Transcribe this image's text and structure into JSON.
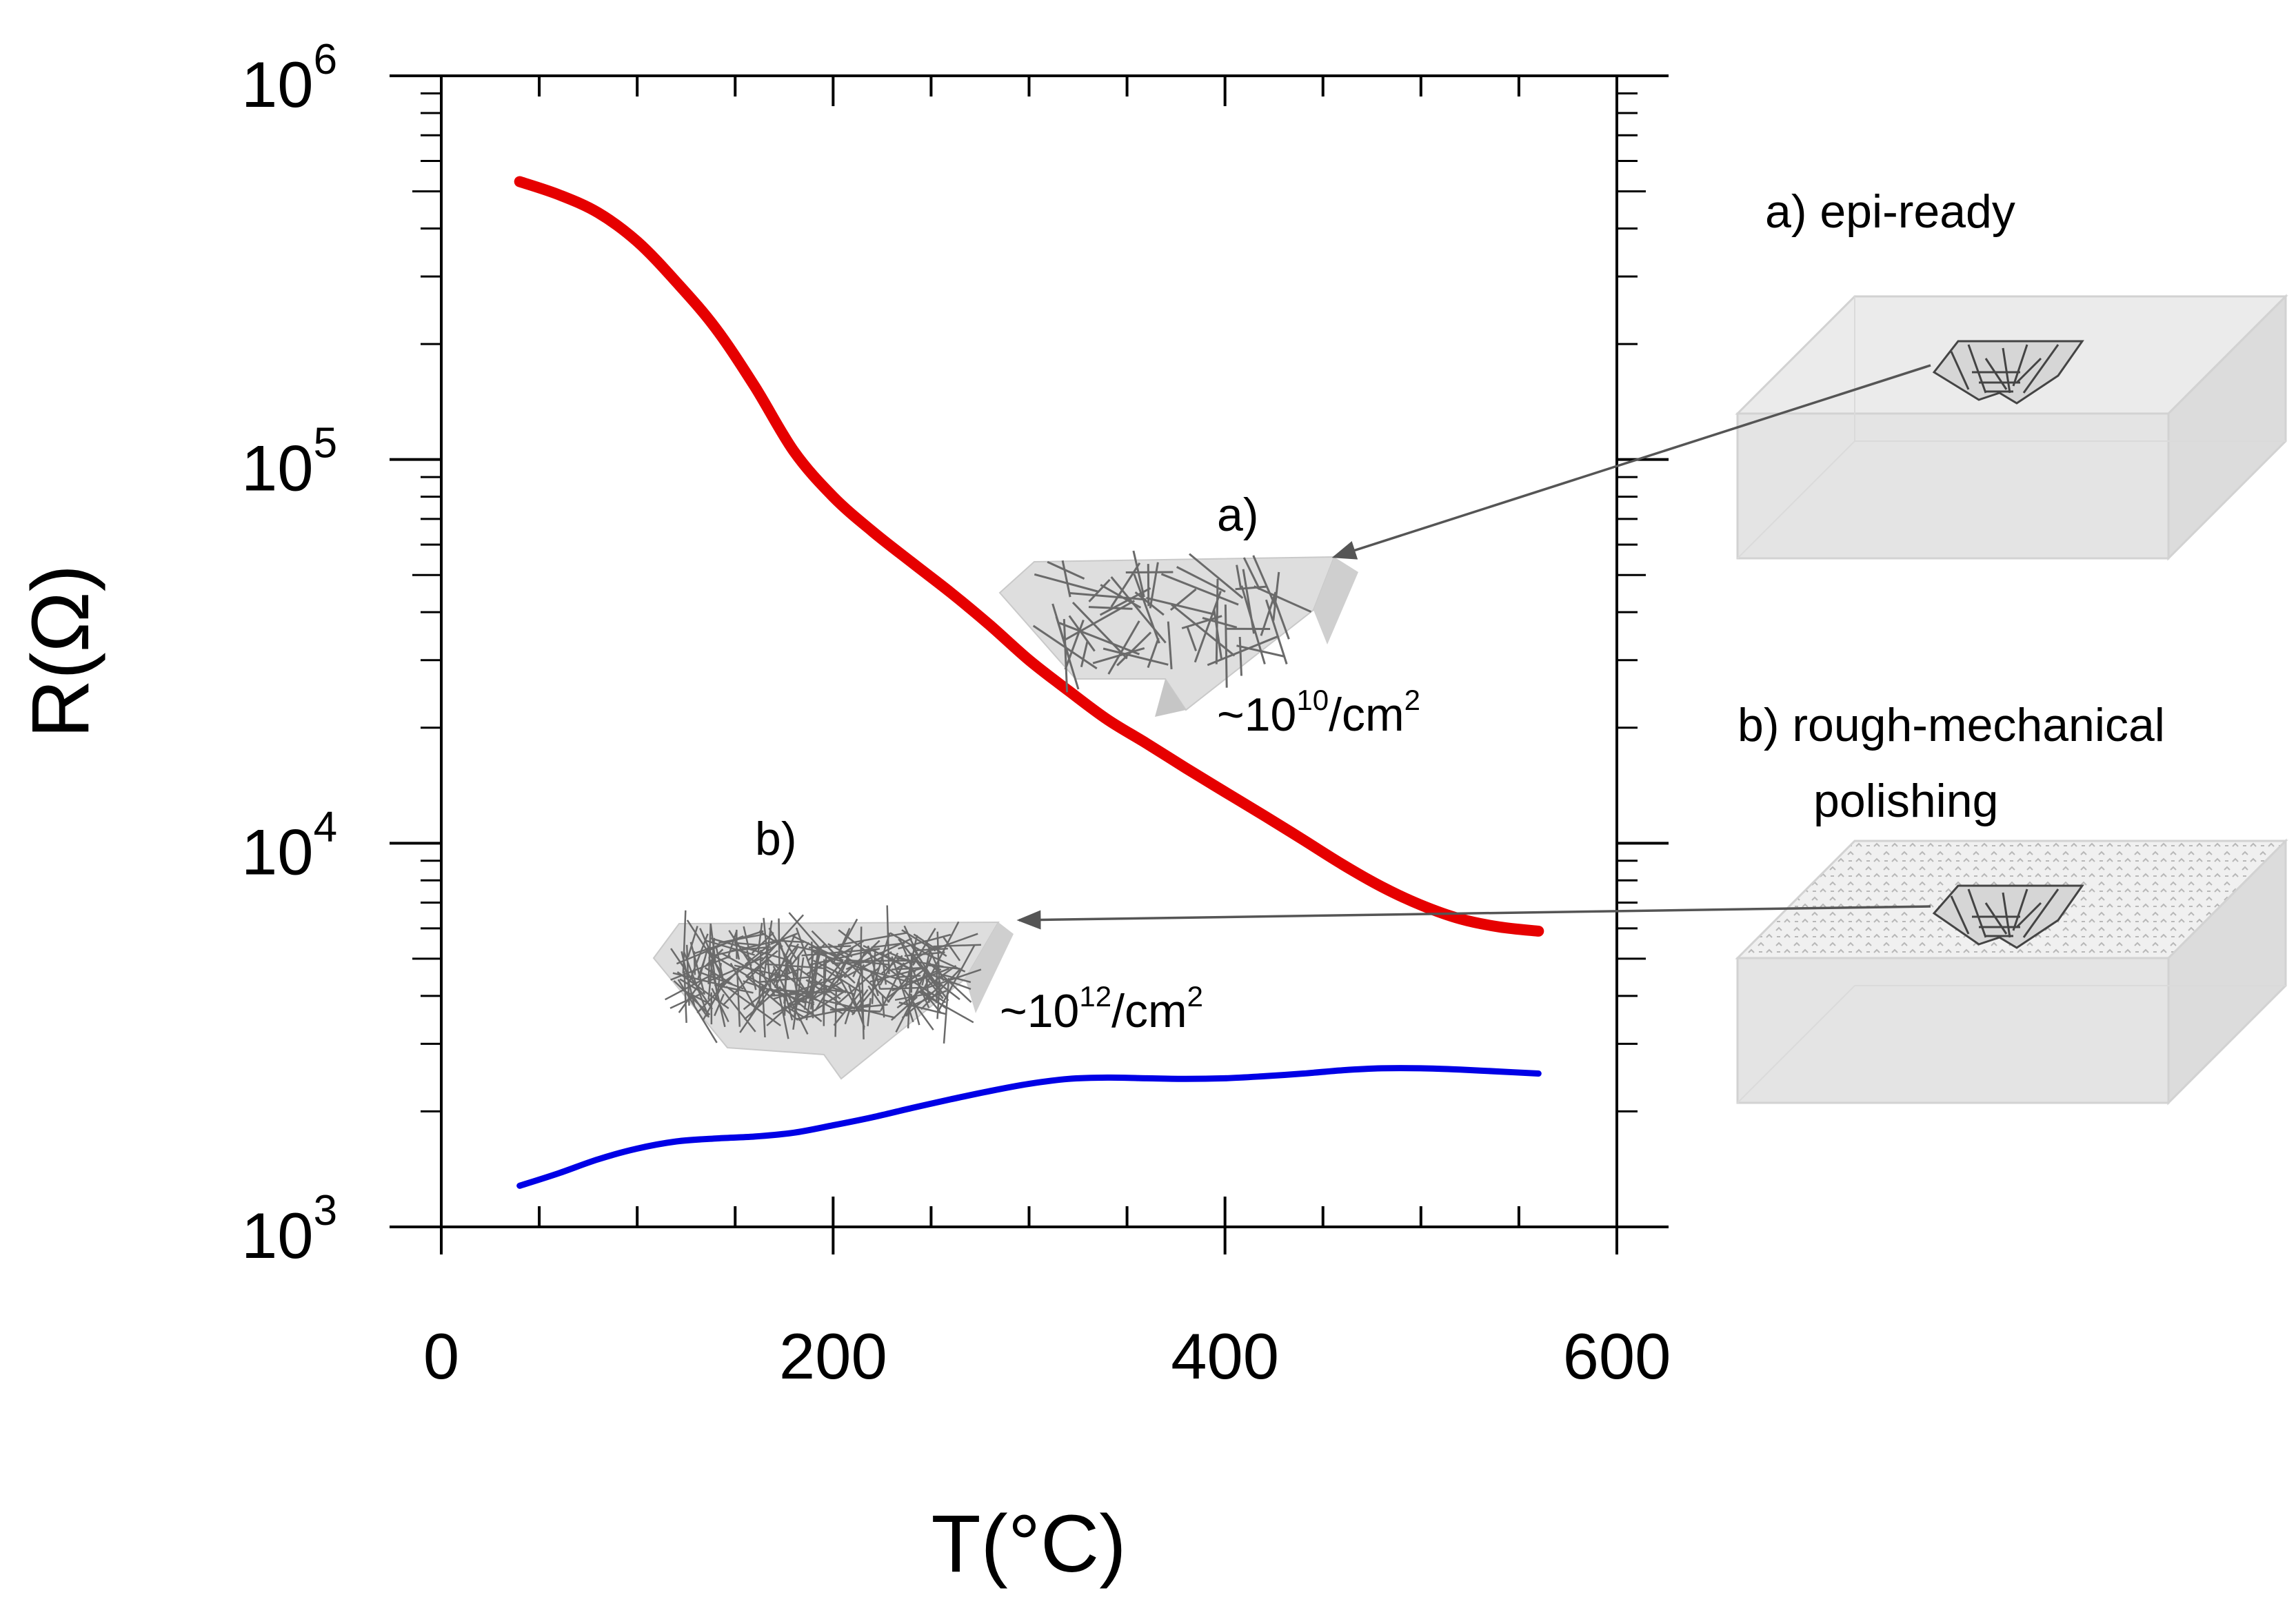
{
  "chart_data": {
    "type": "line",
    "title": "",
    "xlabel": "T(°C)",
    "ylabel": "R(Ω)",
    "xlim": [
      0,
      600
    ],
    "ylim": [
      1000,
      1000000
    ],
    "yscale": "log",
    "x_ticks": [
      0,
      200,
      400,
      600
    ],
    "x_tick_labels": [
      "0",
      "200",
      "400",
      "600"
    ],
    "y_ticks": [
      1000,
      10000,
      100000,
      1000000
    ],
    "y_tick_labels": [
      {
        "base": "10",
        "exp": "3"
      },
      {
        "base": "10",
        "exp": "4"
      },
      {
        "base": "10",
        "exp": "5"
      },
      {
        "base": "10",
        "exp": "6"
      }
    ],
    "series": [
      {
        "name": "a) epi-ready (~10^10/cm^2)",
        "color": "#e60000",
        "x": [
          40,
          60,
          80,
          100,
          120,
          140,
          160,
          180,
          200,
          220,
          240,
          260,
          280,
          300,
          320,
          340,
          360,
          380,
          400,
          420,
          440,
          460,
          480,
          500,
          520,
          540,
          560
        ],
        "y": [
          530000,
          490000,
          440000,
          370000,
          290000,
          220000,
          155000,
          105000,
          80000,
          65000,
          54000,
          45000,
          37000,
          30000,
          25000,
          21000,
          18200,
          15700,
          13600,
          11800,
          10200,
          8800,
          7700,
          6900,
          6350,
          6050,
          5900
        ]
      },
      {
        "name": "b) rough-mechanical polishing (~10^12/cm^2)",
        "color": "#0000e6",
        "x": [
          40,
          60,
          80,
          100,
          120,
          140,
          160,
          180,
          200,
          220,
          240,
          260,
          280,
          300,
          320,
          340,
          360,
          380,
          400,
          420,
          440,
          460,
          480,
          500,
          520,
          540,
          560
        ],
        "y": [
          1280,
          1380,
          1500,
          1600,
          1670,
          1700,
          1720,
          1760,
          1840,
          1930,
          2040,
          2150,
          2260,
          2360,
          2430,
          2450,
          2440,
          2430,
          2440,
          2470,
          2510,
          2560,
          2590,
          2590,
          2570,
          2540,
          2510
        ]
      }
    ]
  },
  "annotations": {
    "a_label": "a)",
    "a_density_base": "~10",
    "a_density_exp": "10",
    "a_density_unit": "/cm",
    "a_density_unit_exp": "2",
    "b_label": "b)",
    "b_density_base": "~10",
    "b_density_exp": "12",
    "b_density_unit": "/cm",
    "b_density_unit_exp": "2",
    "legend_a": "a)  epi-ready",
    "legend_b_line1": "b) rough-mechanical",
    "legend_b_line2": "polishing"
  },
  "colors": {
    "red_curve": "#e60000",
    "blue_curve": "#0000e6",
    "arrow": "#555555",
    "box_fill": "#e6e6e6"
  }
}
